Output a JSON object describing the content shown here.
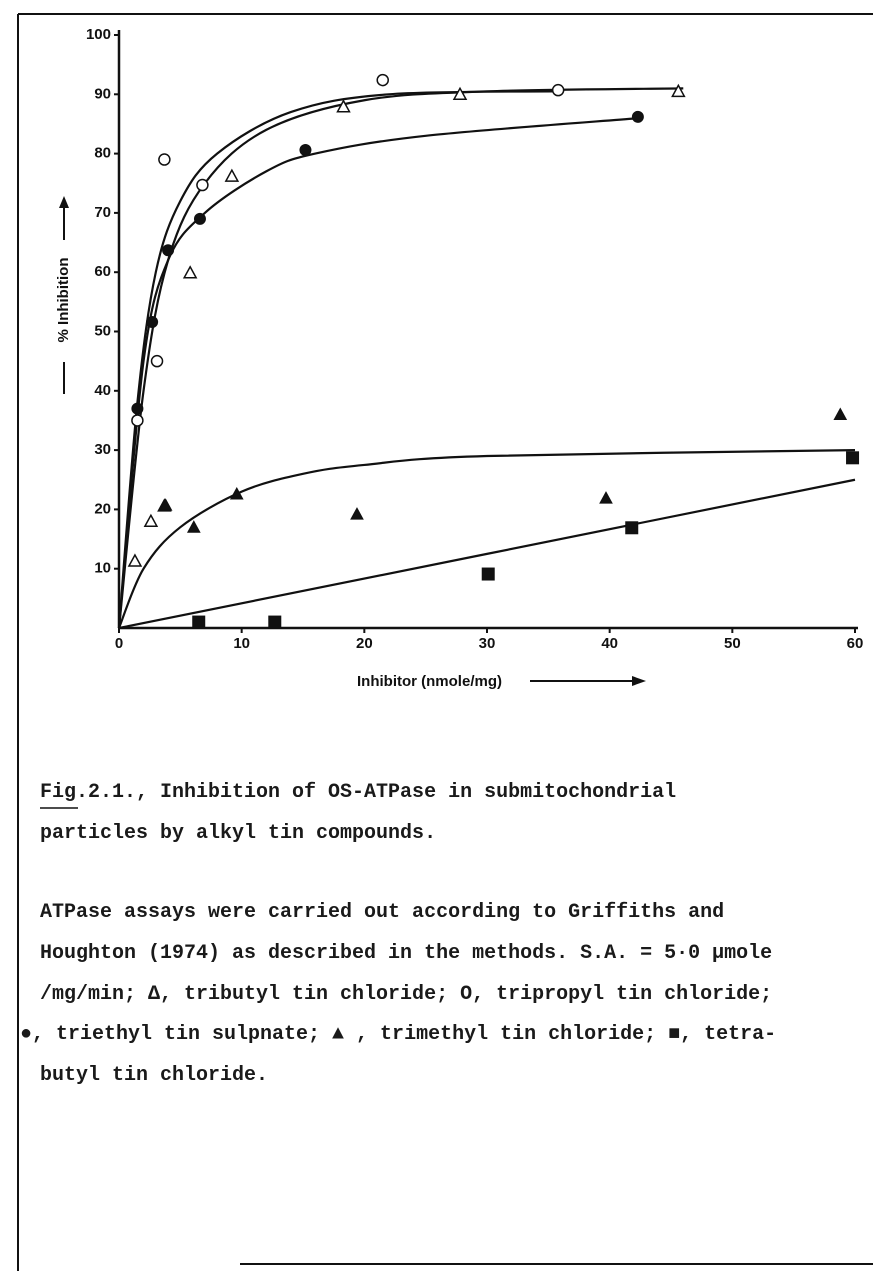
{
  "chart_data": {
    "type": "scatter",
    "y_label": "% Inhibition",
    "x_label": "Inhibitor (nmole/mg)",
    "xlim": [
      0,
      60
    ],
    "xticks": [
      0,
      10,
      20,
      30,
      40,
      50,
      60
    ],
    "ylim": [
      0,
      100
    ],
    "yticks": [
      10,
      20,
      30,
      40,
      50,
      60,
      70,
      80,
      90,
      100
    ],
    "color": "#111111",
    "series": [
      {
        "marker": "open-triangle",
        "x": [
          1.3,
          2.6,
          3.7,
          5.8,
          9.2,
          18.3,
          27.8,
          45.6
        ],
        "values": [
          11.3,
          18,
          20.6,
          59.9,
          76.2,
          87.9,
          90,
          90.5
        ]
      },
      {
        "marker": "open-circle",
        "x": [
          1.5,
          3.1,
          3.7,
          6.8,
          21.5,
          35.8
        ],
        "values": [
          35,
          45,
          79,
          74.7,
          92.4,
          90.7
        ]
      },
      {
        "marker": "filled-circle",
        "x": [
          1.5,
          2.7,
          4,
          6.6,
          15.2,
          42.3
        ],
        "values": [
          37,
          51.6,
          63.7,
          69,
          80.6,
          86.2
        ]
      },
      {
        "marker": "filled-triangle",
        "x": [
          3.8,
          6.1,
          9.6,
          19.4,
          39.7,
          58.8
        ],
        "values": [
          20.7,
          17,
          22.6,
          19.2,
          21.9,
          36
        ]
      },
      {
        "marker": "filled-square",
        "x": [
          6.5,
          12.7,
          30.1,
          41.8,
          59.8
        ],
        "values": [
          1,
          1,
          9.1,
          16.9,
          28.7
        ]
      }
    ],
    "curves": [
      {
        "x": [
          0,
          2,
          4,
          7,
          12,
          20,
          30,
          46
        ],
        "values": [
          0,
          40,
          62,
          75,
          84,
          89,
          90.5,
          91
        ]
      },
      {
        "x": [
          0,
          1.5,
          3,
          5,
          8,
          14,
          22,
          36
        ],
        "values": [
          0,
          38,
          60,
          72,
          80,
          87,
          90,
          90.5
        ]
      },
      {
        "x": [
          0,
          2,
          4,
          7,
          12,
          16,
          25,
          42.5
        ],
        "values": [
          0,
          45,
          62,
          70,
          77,
          80,
          83,
          86
        ]
      },
      {
        "x": [
          0,
          2,
          5,
          10,
          15,
          20,
          30,
          60
        ],
        "values": [
          0,
          10,
          17,
          23,
          26,
          27.5,
          29,
          30
        ]
      },
      {
        "x": [
          0,
          60
        ],
        "values": [
          0,
          25
        ]
      }
    ]
  },
  "caption": {
    "lines": [
      "Fig.2.1.,  Inhibition of OS-ATPase in submitochondrial",
      "particles by alkyl tin compounds.",
      "ATPase assays were carried out according to Griffiths and",
      "Houghton (1974) as described in the methods.  S.A. = 5·0 µmole",
      "/mg/min; Δ, tributyl tin chloride; O, tripropyl tin chloride;",
      "●, triethyl tin sulpnate; ▲ , trimethyl tin chloride; ■, tetra-",
      "butyl tin chloride."
    ]
  }
}
